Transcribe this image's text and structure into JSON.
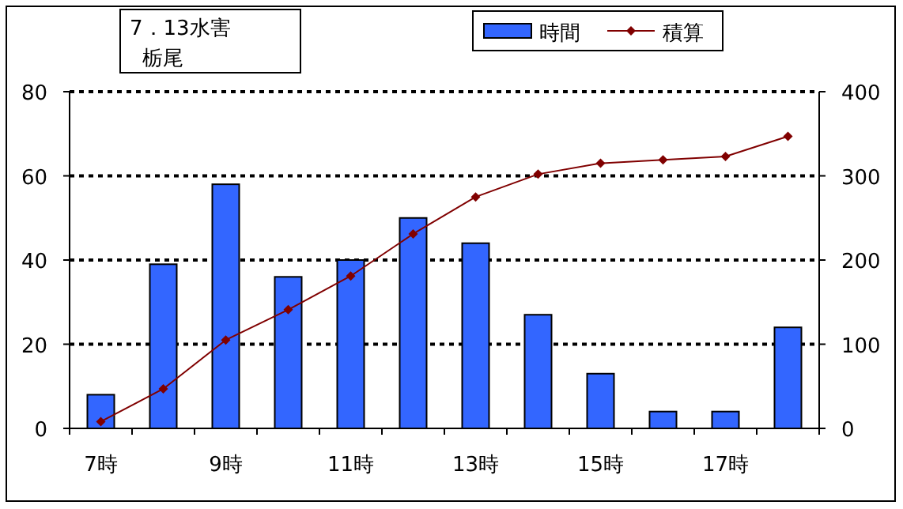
{
  "chart_data": {
    "type": "bar",
    "title": "7．13水害",
    "subtitle": "栃尾",
    "categories": [
      "7時",
      null,
      "9時",
      null,
      "11時",
      null,
      "13時",
      null,
      "15時",
      null,
      "17時",
      null
    ],
    "series": [
      {
        "name": "時間",
        "color": "#3366ff",
        "values": [
          8,
          39,
          58,
          36,
          40,
          50,
          44,
          27,
          13,
          4,
          4,
          24
        ]
      },
      {
        "name": "積算",
        "type": "line",
        "axis": "y2",
        "color": "#800000",
        "marker": "diamond",
        "values": [
          8,
          47,
          105,
          141,
          181,
          231,
          275,
          302,
          315,
          319,
          323,
          347
        ]
      }
    ],
    "ylim": [
      0,
      80
    ],
    "yticks": [
      0,
      20,
      40,
      60,
      80
    ],
    "y2lim": [
      0,
      400
    ],
    "y2ticks": [
      0,
      100,
      200,
      300,
      400
    ],
    "grid": "y",
    "legend": "top right"
  }
}
